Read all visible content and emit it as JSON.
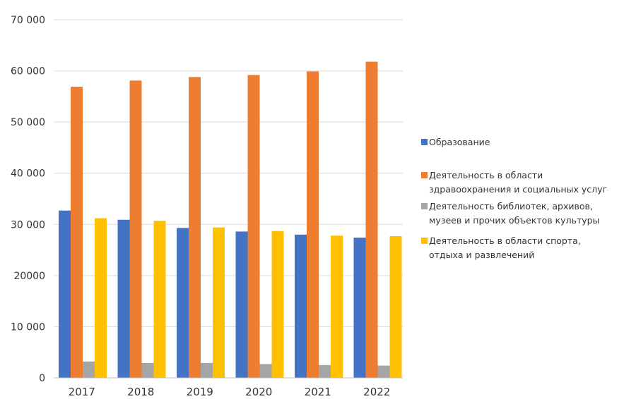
{
  "chart_data": {
    "type": "bar",
    "categories": [
      "2017",
      "2018",
      "2019",
      "2020",
      "2021",
      "2022"
    ],
    "series": [
      {
        "name": "Образование",
        "color": "#4472c4",
        "values": [
          32700,
          30900,
          29300,
          28600,
          28000,
          27400
        ]
      },
      {
        "name": "Деятельность в области здравоохранения и социальных услуг",
        "legend_lines": [
          "Деятельность в области",
          "здравоохранения и социальных услуг"
        ],
        "color": "#ed7d31",
        "values": [
          56900,
          58100,
          58800,
          59200,
          59900,
          61800
        ]
      },
      {
        "name": "Деятельность библиотек, архивов, музеев и прочих объектов культуры",
        "legend_lines": [
          "Деятельность библиотек, архивов,",
          "музеев и прочих объектов культуры"
        ],
        "color": "#a5a5a5",
        "values": [
          3200,
          2900,
          2900,
          2700,
          2500,
          2400
        ]
      },
      {
        "name": "Деятельность в области спорта, отдыха и развлечений",
        "legend_lines": [
          "Деятельность в области спорта,",
          "отдыха и развлечений"
        ],
        "color": "#ffc000",
        "values": [
          31200,
          30700,
          29400,
          28700,
          27800,
          27700
        ]
      }
    ],
    "yticks": [
      {
        "value": 0,
        "label": "0"
      },
      {
        "value": 10000,
        "label": "10 000"
      },
      {
        "value": 20000,
        "label": "20000"
      },
      {
        "value": 30000,
        "label": "30 000"
      },
      {
        "value": 40000,
        "label": "40 000"
      },
      {
        "value": 50000,
        "label": "50 000"
      },
      {
        "value": 60000,
        "label": "60 000"
      },
      {
        "value": 70000,
        "label": "70 000"
      }
    ],
    "ylim": [
      0,
      70000
    ],
    "grid": true,
    "legend_position": "right",
    "title": "",
    "xlabel": "",
    "ylabel": ""
  }
}
